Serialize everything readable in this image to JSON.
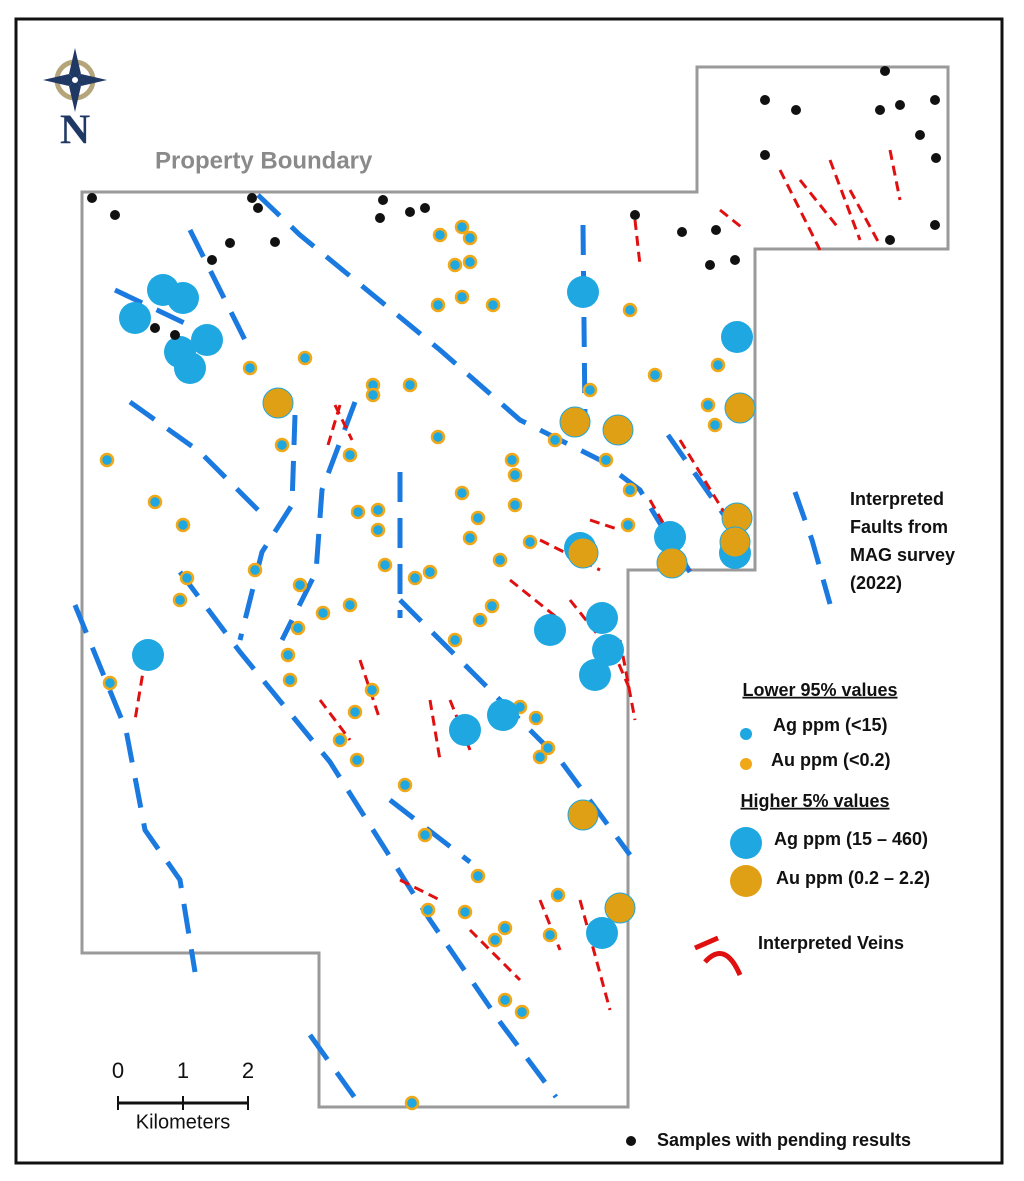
{
  "north_label": "N",
  "boundary_label": "Property Boundary",
  "legend": {
    "faults": [
      "Interpreted",
      "Faults from",
      "MAG survey",
      "(2022)"
    ],
    "lower_heading": "Lower 95% values",
    "lower_ag": "Ag ppm (<15)",
    "lower_au": "Au ppm (<0.2)",
    "higher_heading": "Higher 5% values",
    "higher_ag": "Ag ppm (15 – 460)",
    "higher_au": "Au ppm (0.2 – 2.2)",
    "veins": "Interpreted Veins",
    "pending": "Samples with pending results"
  },
  "scale_bar": {
    "ticks": [
      0,
      1,
      2
    ],
    "unit": "Kilometers"
  }
}
